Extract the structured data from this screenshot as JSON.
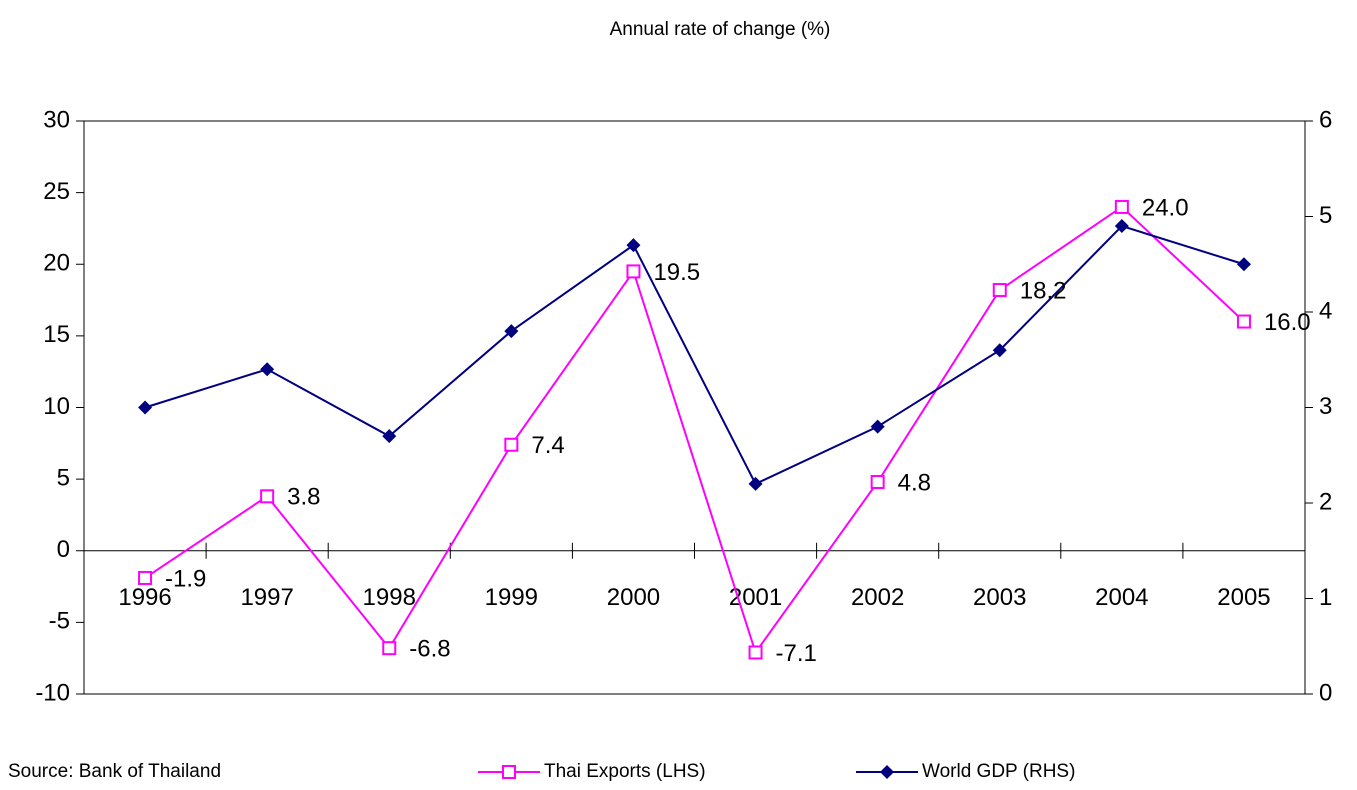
{
  "chart_data": {
    "type": "line",
    "title": "Annual rate of change (%)",
    "source": "Source: Bank of Thailand",
    "categories": [
      "1996",
      "1997",
      "1998",
      "1999",
      "2000",
      "2001",
      "2002",
      "2003",
      "2004",
      "2005"
    ],
    "series": [
      {
        "name": "Thai Exports (LHS)",
        "color": "#ff00ff",
        "marker": "square",
        "values": [
          -1.9,
          3.8,
          -6.8,
          7.4,
          19.5,
          -7.1,
          4.8,
          18.2,
          24.0,
          16.0
        ],
        "value_labels": [
          "-1.9",
          "3.8",
          "-6.8",
          "7.4",
          "19.5",
          "-7.1",
          "4.8",
          "18.2",
          "24.0",
          "16.0"
        ]
      },
      {
        "name": "World GDP (RHS)",
        "color": "#000080",
        "marker": "diamond",
        "axis": "y2",
        "values": [
          3.0,
          3.4,
          2.7,
          3.8,
          4.7,
          2.2,
          2.8,
          3.6,
          4.9,
          4.5
        ]
      }
    ],
    "ylim": [
      -10,
      30
    ],
    "yticks": [
      -10,
      -5,
      0,
      5,
      10,
      15,
      20,
      25,
      30
    ],
    "y2lim": [
      0,
      6
    ],
    "y2ticks": [
      0,
      1,
      2,
      3,
      4,
      5,
      6
    ],
    "grid": false,
    "legend": "bottom"
  }
}
